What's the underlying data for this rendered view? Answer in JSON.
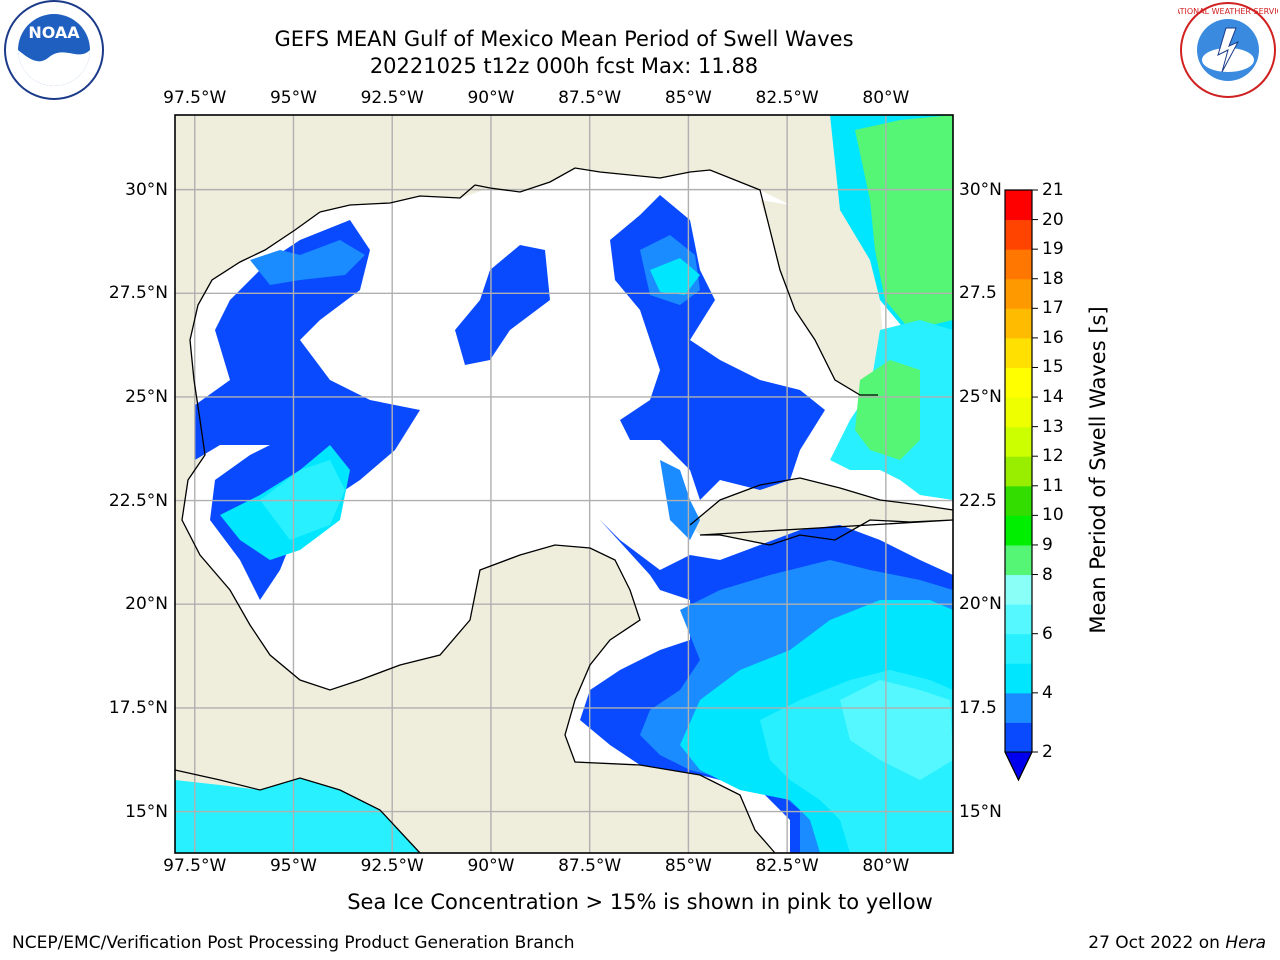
{
  "title_line1": "GEFS MEAN Gulf of Mexico Mean Period of Swell Waves",
  "title_line2": "20221025 t12z 000h fcst   Max: 11.88",
  "lon_ticks": [
    "97.5°W",
    "95°W",
    "92.5°W",
    "90°W",
    "87.5°W",
    "85°W",
    "82.5°W",
    "80°W"
  ],
  "lon_values": [
    -97.5,
    -95,
    -92.5,
    -90,
    -87.5,
    -85,
    -82.5,
    -80
  ],
  "lat_ticks": [
    "30°N",
    "27.5°N",
    "25°N",
    "22.5°N",
    "20°N",
    "17.5°N",
    "15°N"
  ],
  "lat_values": [
    30,
    27.5,
    25,
    22.5,
    20,
    17.5,
    15
  ],
  "lat_ticks_right": [
    "30°N",
    "27.5",
    "25°N",
    "22.5",
    "20°N",
    "17.5",
    "15°N"
  ],
  "map_extent": {
    "lon": [
      -98,
      -78.3
    ],
    "lat": [
      14,
      31.8
    ]
  },
  "colorbar": {
    "label": "Mean Period of Swell Waves [s]",
    "tick_labels": [
      "2",
      "4",
      "6",
      "8",
      "9",
      "10",
      "11",
      "12",
      "13",
      "14",
      "15",
      "16",
      "17",
      "18",
      "19",
      "20",
      "21"
    ],
    "bounds": [
      2,
      3,
      4,
      5,
      6,
      7,
      8,
      9,
      10,
      11,
      12,
      13,
      14,
      15,
      16,
      17,
      18,
      19,
      20,
      21
    ],
    "colors": [
      "#0a4aff",
      "#1a8cff",
      "#00e6ff",
      "#28f0ff",
      "#55f8ff",
      "#8afff8",
      "#55f575",
      "#00ee00",
      "#33dd00",
      "#99ee00",
      "#ccff00",
      "#eeff00",
      "#ffff00",
      "#ffe000",
      "#ffbb00",
      "#ff9900",
      "#ff7700",
      "#ff4400",
      "#ff0000"
    ],
    "extend_color": "#0000ee"
  },
  "colors": {
    "land": "#efeddc",
    "ocean": "#ffffff",
    "grid": "#b0b0b0",
    "coast": "#000000"
  },
  "caption": "Sea Ice Concentration > 15% is shown in pink to yellow",
  "footer_left": "NCEP/EMC/Verification Post Processing Product Generation Branch",
  "footer_right_date": "27 Oct 2022 on ",
  "footer_right_host": "Hera",
  "logos": {
    "left": "NOAA",
    "right": "NATIONAL WEATHER SERVICE"
  }
}
